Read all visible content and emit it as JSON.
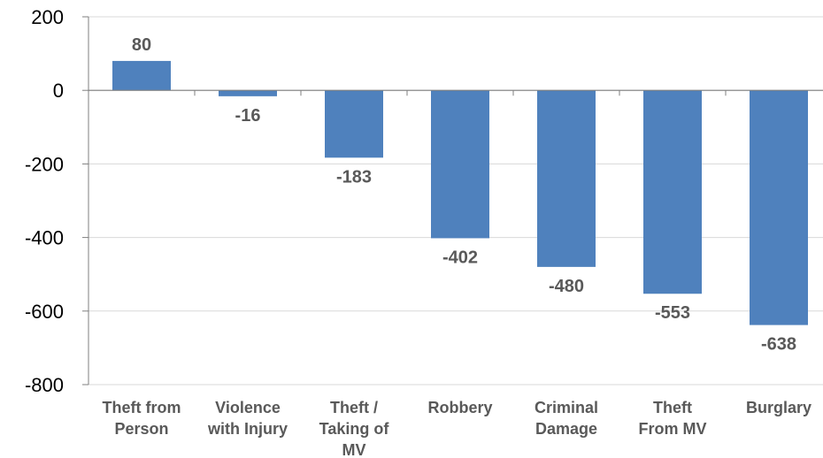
{
  "chart_data": {
    "type": "bar",
    "categories": [
      [
        "Theft from",
        "Person"
      ],
      [
        "Violence",
        "with Injury"
      ],
      [
        "Theft /",
        "Taking of",
        "MV"
      ],
      [
        "Robbery"
      ],
      [
        "Criminal",
        "Damage"
      ],
      [
        "Theft",
        "From MV"
      ],
      [
        "Burglary"
      ]
    ],
    "values": [
      80,
      -16,
      -183,
      -402,
      -480,
      -553,
      -638
    ],
    "data_labels": [
      "80",
      "-16",
      "-183",
      "-402",
      "-480",
      "-553",
      "-638"
    ],
    "ylim": [
      -800,
      200
    ],
    "yticks": [
      200,
      0,
      -200,
      -400,
      -600,
      -800
    ],
    "ytick_labels": [
      "200",
      "0",
      "-200",
      "-400",
      "-600",
      "-800"
    ],
    "grid": true,
    "legend": "none",
    "bar_color": "#4f81bd",
    "grid_color": "#d9d9d9",
    "axis_color": "#7f7f7f"
  }
}
